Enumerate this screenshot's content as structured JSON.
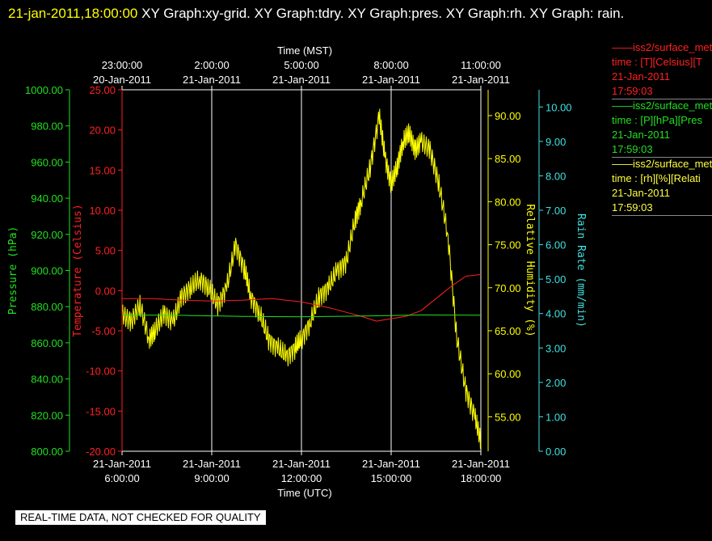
{
  "header": {
    "timestamp": "21-jan-2011,18:00:00",
    "title": "XY Graph:xy-grid.  XY Graph:tdry.  XY Graph:pres.  XY Graph:rh.  XY Graph: rain."
  },
  "disclaimer": "REAL-TIME DATA, NOT CHECKED FOR QUALITY",
  "legend": [
    {
      "line1": "iss2/surface_met",
      "line2": "time : [T][Celsius][T",
      "date": "21-Jan-2011",
      "time": "17:59:03",
      "color": "#ff2020"
    },
    {
      "line1": "iss2/surface_met",
      "line2": "time : [P][hPa][Pres",
      "date": "21-Jan-2011",
      "time": "17:59:03",
      "color": "#20e020"
    },
    {
      "line1": "iss2/surface_met",
      "line2": "time : [rh][%][Relati",
      "date": "21-Jan-2011",
      "time": "17:59:03",
      "color": "#ffff40"
    }
  ],
  "chart_data": {
    "type": "line",
    "xlabel_bottom": "Time (UTC)",
    "xlabel_top": "Time (MST)",
    "x_range": [
      "2011-01-21 06:00",
      "2011-01-21 18:00"
    ],
    "x_ticks_bottom": [
      {
        "date": "21-Jan-2011",
        "time": "6:00:00"
      },
      {
        "date": "21-Jan-2011",
        "time": "9:00:00"
      },
      {
        "date": "21-Jan-2011",
        "time": "12:00:00"
      },
      {
        "date": "21-Jan-2011",
        "time": "15:00:00"
      },
      {
        "date": "21-Jan-2011",
        "time": "18:00:00"
      }
    ],
    "x_ticks_top": [
      {
        "time": "23:00:00",
        "date": "20-Jan-2011"
      },
      {
        "time": "2:00:00",
        "date": "21-Jan-2011"
      },
      {
        "time": "5:00:00",
        "date": "21-Jan-2011"
      },
      {
        "time": "8:00:00",
        "date": "21-Jan-2011"
      },
      {
        "time": "11:00:00",
        "date": "21-Jan-2011"
      }
    ],
    "grid": "vertical",
    "axes": {
      "pressure": {
        "label": "Pressure (hPa)",
        "range": [
          800,
          1000
        ],
        "ticks": [
          "800.00",
          "820.00",
          "840.00",
          "860.00",
          "880.00",
          "900.00",
          "920.00",
          "940.00",
          "960.00",
          "980.00",
          "1000.00"
        ],
        "color": "#20e020"
      },
      "temperature": {
        "label": "Temperature (Celsius)",
        "range": [
          -20,
          25
        ],
        "ticks": [
          "-20.00",
          "-15.00",
          "-10.00",
          "-5.00",
          "0.00",
          "5.00",
          "10.00",
          "15.00",
          "20.00",
          "25.00"
        ],
        "color": "#ff2020"
      },
      "rh": {
        "label": "Relative Humidity (%)",
        "range": [
          51,
          93
        ],
        "ticks": [
          "55.00",
          "60.00",
          "65.00",
          "70.00",
          "75.00",
          "80.00",
          "85.00",
          "90.00"
        ],
        "color": "#ffff00"
      },
      "rain": {
        "label": "Rain Rate (mm/min)",
        "range": [
          0,
          10.5
        ],
        "ticks": [
          "0.00",
          "1.00",
          "2.00",
          "3.00",
          "4.00",
          "5.00",
          "6.00",
          "7.00",
          "8.00",
          "9.00",
          "10.00"
        ],
        "color": "#40e0e0"
      }
    },
    "series": [
      {
        "name": "rh",
        "axis": "rh",
        "color": "#ffff00",
        "x": [
          6.0,
          6.3,
          6.6,
          6.9,
          7.1,
          7.4,
          7.7,
          8.0,
          8.3,
          8.6,
          8.9,
          9.2,
          9.5,
          9.8,
          10.1,
          10.3,
          10.6,
          10.9,
          11.2,
          11.5,
          11.8,
          12.0,
          12.3,
          12.6,
          12.9,
          13.2,
          13.5,
          13.8,
          14.0,
          14.3,
          14.6,
          14.8,
          15.0,
          15.2,
          15.4,
          15.6,
          15.8,
          16.0,
          16.3,
          16.6,
          16.9,
          17.2,
          17.5,
          17.8,
          18.0
        ],
        "y": [
          67,
          66,
          68,
          64,
          65,
          67,
          66,
          69,
          70,
          71,
          70,
          68,
          70,
          75,
          72,
          69,
          67,
          64,
          63,
          62,
          63,
          64,
          66,
          69,
          70,
          72,
          73,
          78,
          80,
          84,
          90,
          85,
          82,
          84,
          87,
          88,
          86,
          87,
          86,
          82,
          76,
          64,
          58,
          55,
          52
        ]
      },
      {
        "name": "temperature",
        "axis": "temperature",
        "color": "#ff2020",
        "x": [
          6.0,
          7.0,
          8.0,
          9.0,
          10.0,
          11.0,
          12.0,
          13.0,
          14.0,
          14.5,
          15.0,
          15.5,
          16.0,
          16.5,
          17.0,
          17.5,
          18.0
        ],
        "y": [
          -1.0,
          -1.0,
          -1.2,
          -1.3,
          -1.2,
          -1.0,
          -1.4,
          -2.2,
          -3.2,
          -3.8,
          -3.5,
          -3.2,
          -2.5,
          -1.0,
          0.5,
          1.8,
          2.0
        ]
      },
      {
        "name": "pressure",
        "axis": "pressure",
        "color": "#20e020",
        "x": [
          6.0,
          8.0,
          10.0,
          12.0,
          14.0,
          16.0,
          18.0
        ],
        "y": [
          875.4,
          875.2,
          874.6,
          874.4,
          874.8,
          875.4,
          875.3
        ]
      }
    ]
  }
}
